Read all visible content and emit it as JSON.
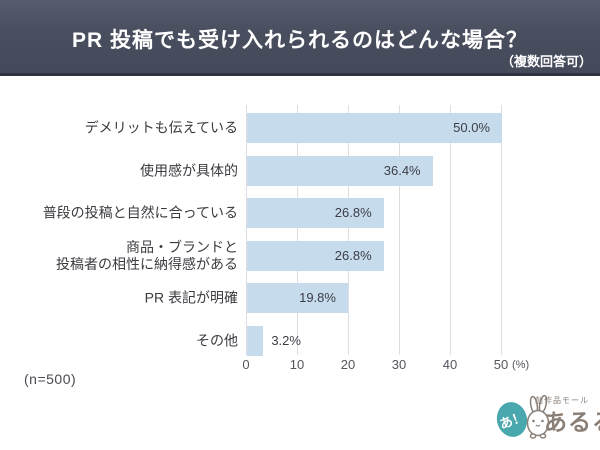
{
  "chart_data": {
    "type": "bar",
    "orientation": "horizontal",
    "title": "PR 投稿でも受け入れられるのはどんな場合？",
    "note": "（複数回答可）",
    "sample_label": "(n=500)",
    "categories": [
      "デメリットも伝えている",
      "使用感が具体的",
      "普段の投稿と自然に合っている",
      "商品・ブランドと\n投稿者の相性に納得感がある",
      "PR 表記が明確",
      "その他"
    ],
    "values": [
      50.0,
      36.4,
      26.8,
      26.8,
      19.8,
      3.2
    ],
    "value_labels": [
      "50.0%",
      "36.4%",
      "26.8%",
      "26.8%",
      "19.8%",
      "3.2%"
    ],
    "xlim": [
      0,
      50
    ],
    "x_ticks": [
      0,
      10,
      20,
      30,
      40,
      50
    ],
    "x_unit": "(%)",
    "grid": "vertical-gridlines",
    "legend": "none",
    "bar_color": "#c6dcec",
    "header_color": "#494e5f"
  },
  "logo": {
    "tagline": "創作品モール",
    "brand": "あるる",
    "badge": "あ！",
    "accent_color": "#49a7ae",
    "text_color": "#8a7f76"
  }
}
